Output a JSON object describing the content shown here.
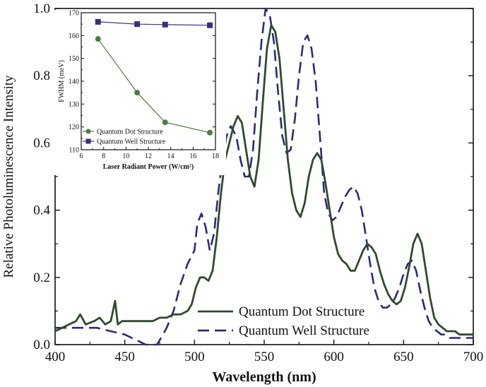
{
  "chart_data": [
    {
      "id": "main",
      "type": "line",
      "xlabel": "Wavelength (nm)",
      "ylabel": "Relative Photoluminescence Intensity",
      "xlim": [
        400,
        700
      ],
      "ylim": [
        0.0,
        1.0
      ],
      "x_ticks": [
        "400",
        "450",
        "500",
        "550",
        "600",
        "650",
        "700"
      ],
      "y_ticks": [
        "0.0",
        "0.2",
        "0.4",
        "0.6",
        "0.8",
        "1.0"
      ],
      "grid": false,
      "legend_position": "bottom-center",
      "series": [
        {
          "name": "Quantum Dot Structure",
          "style": "solid",
          "color": "#2f4a2c",
          "x": [
            400,
            405,
            410,
            415,
            418,
            422,
            428,
            432,
            436,
            440,
            443,
            445,
            448,
            452,
            458,
            465,
            470,
            475,
            480,
            485,
            490,
            495,
            498,
            501,
            504,
            507,
            510,
            513,
            516,
            519,
            522,
            525,
            528,
            531,
            534,
            537,
            540,
            543,
            546,
            549,
            552,
            555,
            558,
            561,
            564,
            567,
            570,
            573,
            576,
            579,
            582,
            585,
            588,
            591,
            594,
            597,
            600,
            603,
            606,
            609,
            612,
            615,
            618,
            621,
            624,
            627,
            630,
            633,
            636,
            639,
            642,
            645,
            648,
            651,
            654,
            657,
            660,
            663,
            666,
            669,
            672,
            675,
            678,
            681,
            684,
            687,
            690,
            693,
            696,
            700
          ],
          "y": [
            0.04,
            0.05,
            0.06,
            0.07,
            0.09,
            0.06,
            0.07,
            0.08,
            0.06,
            0.07,
            0.13,
            0.06,
            0.07,
            0.07,
            0.07,
            0.07,
            0.07,
            0.08,
            0.08,
            0.09,
            0.09,
            0.1,
            0.12,
            0.17,
            0.2,
            0.2,
            0.19,
            0.22,
            0.32,
            0.45,
            0.55,
            0.6,
            0.65,
            0.68,
            0.66,
            0.58,
            0.5,
            0.47,
            0.55,
            0.72,
            0.88,
            0.95,
            0.93,
            0.85,
            0.7,
            0.55,
            0.45,
            0.4,
            0.38,
            0.42,
            0.5,
            0.55,
            0.57,
            0.55,
            0.48,
            0.4,
            0.32,
            0.27,
            0.25,
            0.24,
            0.22,
            0.22,
            0.25,
            0.28,
            0.3,
            0.29,
            0.27,
            0.22,
            0.18,
            0.15,
            0.13,
            0.12,
            0.13,
            0.17,
            0.23,
            0.3,
            0.33,
            0.3,
            0.22,
            0.14,
            0.08,
            0.06,
            0.05,
            0.04,
            0.04,
            0.04,
            0.03,
            0.03,
            0.03,
            0.03
          ]
        },
        {
          "name": "Quantum Well Structure",
          "style": "dashed",
          "color": "#2d2a7a",
          "x": [
            400,
            410,
            420,
            430,
            440,
            450,
            455,
            460,
            465,
            470,
            473,
            476,
            480,
            485,
            490,
            495,
            500,
            502,
            505,
            508,
            511,
            514,
            517,
            520,
            523,
            526,
            530,
            533,
            536,
            539,
            542,
            545,
            548,
            551,
            554,
            557,
            560,
            563,
            566,
            569,
            572,
            575,
            578,
            581,
            584,
            587,
            590,
            593,
            596,
            599,
            602,
            605,
            608,
            611,
            614,
            617,
            620,
            623,
            626,
            629,
            632,
            635,
            638,
            641,
            644,
            647,
            650,
            653,
            656,
            659,
            662,
            665,
            668,
            671,
            674,
            677,
            680,
            683,
            686,
            690,
            700
          ],
          "y": [
            0.05,
            0.05,
            0.05,
            0.05,
            0.04,
            0.03,
            0.02,
            0.01,
            0.0,
            0.0,
            0.0,
            0.02,
            0.05,
            0.1,
            0.18,
            0.24,
            0.28,
            0.36,
            0.39,
            0.35,
            0.28,
            0.33,
            0.45,
            0.55,
            0.62,
            0.65,
            0.62,
            0.55,
            0.5,
            0.5,
            0.58,
            0.75,
            0.9,
            1.0,
            0.98,
            0.9,
            0.75,
            0.62,
            0.57,
            0.58,
            0.67,
            0.8,
            0.9,
            0.92,
            0.88,
            0.78,
            0.62,
            0.45,
            0.39,
            0.37,
            0.38,
            0.41,
            0.44,
            0.46,
            0.47,
            0.45,
            0.4,
            0.32,
            0.24,
            0.17,
            0.13,
            0.11,
            0.11,
            0.12,
            0.14,
            0.17,
            0.21,
            0.24,
            0.25,
            0.22,
            0.16,
            0.11,
            0.07,
            0.05,
            0.04,
            0.03,
            0.03,
            0.02,
            0.02,
            0.02,
            0.02
          ]
        }
      ]
    },
    {
      "id": "inset",
      "type": "line",
      "xlabel": "Laser Radiant Power (W/cm²)",
      "ylabel": "FWHM (meV)",
      "xlim": [
        6,
        18
      ],
      "ylim": [
        110,
        170
      ],
      "x_ticks": [
        "6",
        "8",
        "10",
        "12",
        "14",
        "16",
        "18"
      ],
      "y_ticks": [
        "110",
        "120",
        "130",
        "140",
        "150",
        "160",
        "170"
      ],
      "grid": false,
      "legend_position": "bottom-left",
      "series": [
        {
          "name": "Quantum Dot Structure",
          "marker": "circle",
          "color": "#4f7a46",
          "x": [
            7.5,
            11,
            13.5,
            17.5
          ],
          "y": [
            158.5,
            135,
            122,
            117.5
          ]
        },
        {
          "name": "Quantum Well Structure",
          "marker": "square",
          "color": "#35307e",
          "x": [
            7.5,
            11,
            13.5,
            17.5
          ],
          "y": [
            166,
            165,
            164.8,
            164.5
          ]
        }
      ]
    }
  ]
}
